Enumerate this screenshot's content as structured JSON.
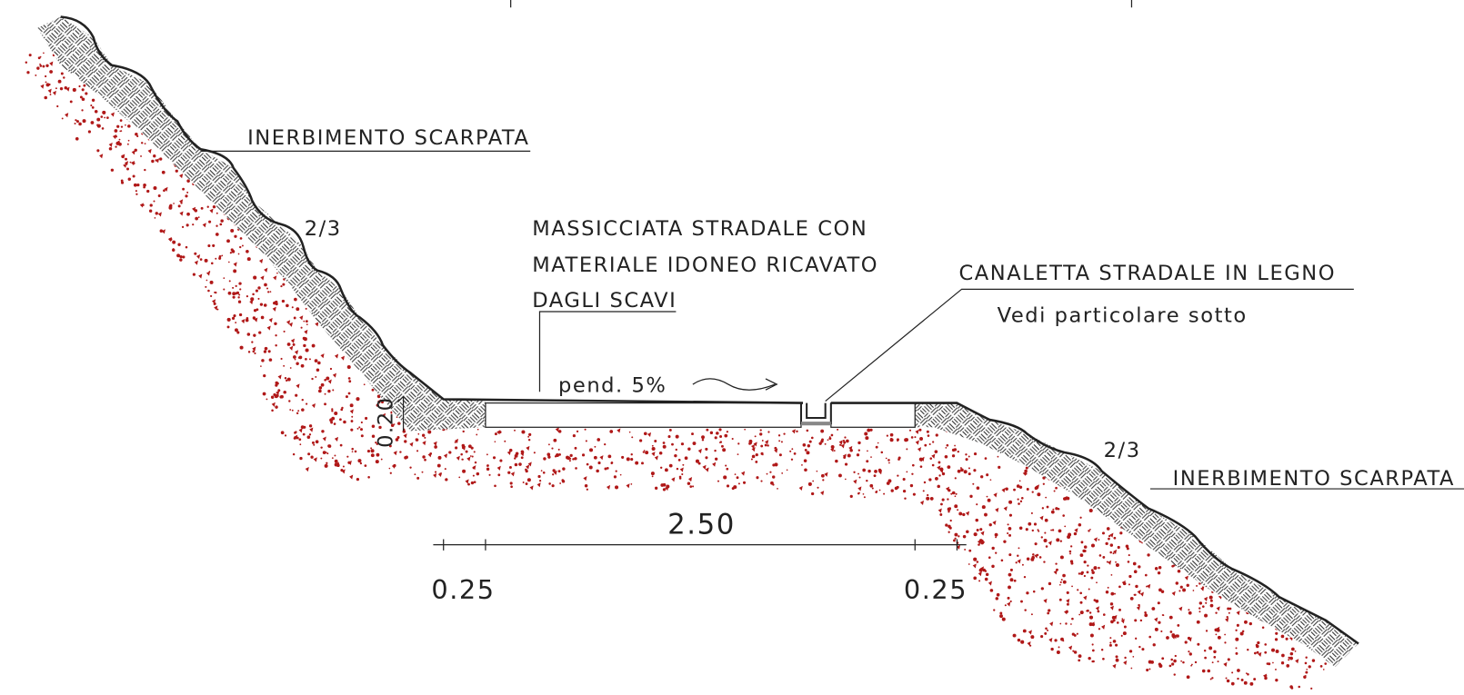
{
  "labels": {
    "left_slope": "INERBIMENTO SCARPATA",
    "left_ratio": "2/3",
    "roadbed_lines": [
      "MASSICCIATA STRADALE CON",
      "MATERIALE IDONEO RICAVATO",
      "DAGLI SCAVI"
    ],
    "channel": "CANALETTA STRADALE IN LEGNO",
    "channel_note": "Vedi particolare sotto",
    "slope_note": "pend. 5%",
    "thickness": "0.20",
    "width": "2.50",
    "left_margin": "0.25",
    "right_margin": "0.25",
    "right_ratio": "2/3",
    "right_slope": "INERBIMENTO SCARPATA"
  }
}
